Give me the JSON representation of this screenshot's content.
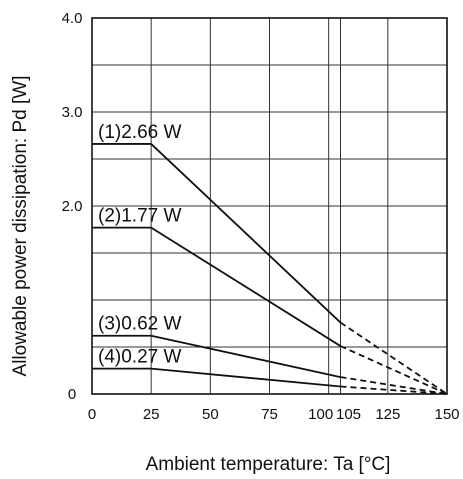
{
  "chart_data": {
    "type": "line",
    "title": "",
    "xlabel": "Ambient temperature: Ta [°C]",
    "ylabel": "Allowable power dissipation: Pd [W]",
    "xlim": [
      0,
      150
    ],
    "ylim": [
      0,
      4.0
    ],
    "x_ticks": [
      "0",
      "25",
      "50",
      "75",
      "100",
      "105",
      "125",
      "150"
    ],
    "x_tick_values": [
      0,
      25,
      50,
      75,
      100,
      105,
      125,
      150
    ],
    "y_ticks": [
      "0",
      "2.0",
      "3.0",
      "4.0"
    ],
    "y_tick_values": [
      0,
      2.0,
      3.0,
      4.0
    ],
    "grid": true,
    "grid_x": [
      0,
      25,
      50,
      75,
      100,
      105,
      125,
      150
    ],
    "grid_y": [
      0,
      0.5,
      1.0,
      1.5,
      2.0,
      2.5,
      3.0,
      3.5,
      4.0
    ],
    "solid_until_x": 105,
    "series": [
      {
        "name": "(1)",
        "label": "(1)2.66 W",
        "x": [
          0,
          25,
          105,
          150
        ],
        "y": [
          2.66,
          2.66,
          0.76,
          0
        ]
      },
      {
        "name": "(2)",
        "label": "(2)1.77 W",
        "x": [
          0,
          25,
          105,
          150
        ],
        "y": [
          1.77,
          1.77,
          0.51,
          0
        ]
      },
      {
        "name": "(3)",
        "label": "(3)0.62 W",
        "x": [
          0,
          25,
          105,
          150
        ],
        "y": [
          0.62,
          0.62,
          0.18,
          0
        ]
      },
      {
        "name": "(4)",
        "label": "(4)0.27 W",
        "x": [
          0,
          25,
          105,
          150
        ],
        "y": [
          0.27,
          0.27,
          0.08,
          0
        ]
      }
    ]
  }
}
